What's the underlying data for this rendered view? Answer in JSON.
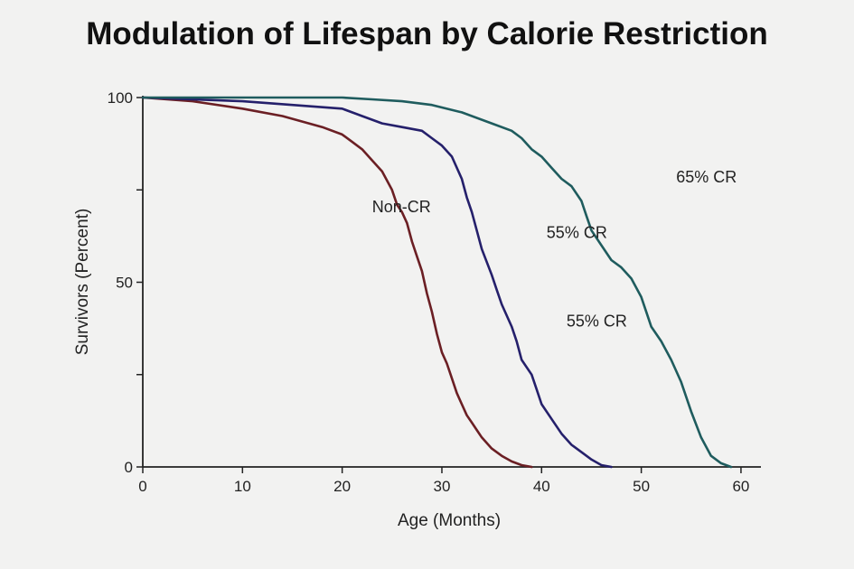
{
  "chart_data": {
    "type": "line",
    "title": "Modulation of Lifespan by Calorie Restriction",
    "xlabel": "Age (Months)",
    "ylabel": "Survivors (Percent)",
    "xlim": [
      0,
      62
    ],
    "ylim": [
      0,
      100
    ],
    "x_ticks": [
      0,
      10,
      20,
      30,
      40,
      50,
      60
    ],
    "y_ticks": [
      0,
      25,
      50,
      75,
      100
    ],
    "y_tick_labels": [
      "0",
      "",
      "50",
      "",
      "100"
    ],
    "grid": false,
    "legend": "none",
    "series": [
      {
        "name": "Non-CR",
        "color": "#6b1f24",
        "x": [
          0,
          5,
          10,
          14,
          18,
          20,
          21,
          22,
          23,
          24,
          25,
          25.5,
          26,
          26.5,
          27,
          27.5,
          28,
          28.5,
          29,
          29.5,
          30,
          30.5,
          31,
          31.5,
          32,
          32.5,
          33,
          33.5,
          34,
          35,
          36,
          37,
          38,
          39
        ],
        "y": [
          100,
          99,
          97,
          95,
          92,
          90,
          88,
          86,
          83,
          80,
          75,
          71,
          69,
          66,
          61,
          57,
          53,
          47,
          42,
          36,
          31,
          28,
          24,
          20,
          17,
          14,
          12,
          10,
          8,
          5,
          3,
          1.5,
          0.5,
          0
        ]
      },
      {
        "label_text": "55% CR",
        "color": "#25206b",
        "x": [
          0,
          10,
          15,
          20,
          22,
          24,
          26,
          28,
          29,
          30,
          31,
          32,
          32.5,
          33,
          33.5,
          34,
          35,
          35.5,
          36,
          37,
          37.5,
          38,
          39,
          39.5,
          40,
          41,
          42,
          43,
          44,
          45,
          46,
          47
        ],
        "y": [
          100,
          99,
          98,
          97,
          95,
          93,
          92,
          91,
          89,
          87,
          84,
          78,
          73,
          69,
          64,
          59,
          52,
          48,
          44,
          38,
          34,
          29,
          25,
          21,
          17,
          13,
          9,
          6,
          4,
          2,
          0.5,
          0
        ]
      },
      {
        "label_text": "65% CR",
        "color": "#1f5c5e",
        "x": [
          0,
          10,
          20,
          23,
          26,
          29,
          32,
          35,
          37,
          38,
          39,
          40,
          41,
          42,
          43,
          44,
          44.5,
          45,
          46,
          47,
          48,
          49,
          50,
          50.5,
          51,
          52,
          53,
          54,
          55,
          56,
          57,
          58,
          59
        ],
        "y": [
          100,
          100,
          100,
          99.5,
          99,
          98,
          96,
          93,
          91,
          89,
          86,
          84,
          81,
          78,
          76,
          72,
          68,
          64,
          60,
          56,
          54,
          51,
          46,
          42,
          38,
          34,
          29,
          23,
          15,
          8,
          3,
          1,
          0
        ]
      }
    ],
    "annotations": [
      {
        "text": "Non-CR",
        "x": 23,
        "y": 69
      },
      {
        "text": "55% CR",
        "x": 40.5,
        "y": 62
      },
      {
        "text": "55% CR",
        "x": 42.5,
        "y": 38
      },
      {
        "text": "65% CR",
        "x": 53.5,
        "y": 77
      }
    ]
  }
}
